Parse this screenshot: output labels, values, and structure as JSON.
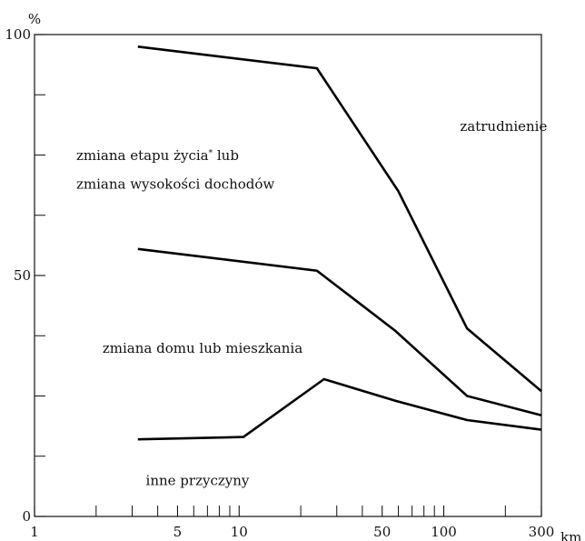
{
  "chart_data": {
    "type": "line",
    "title": "",
    "xlabel": "km",
    "ylabel": "%",
    "x_scale": "log",
    "xlim": [
      1,
      300
    ],
    "ylim": [
      0,
      100
    ],
    "x_ticks_major": [
      1,
      5,
      10,
      50,
      100,
      300
    ],
    "x_ticks_minor": [
      2,
      3,
      4,
      6,
      7,
      8,
      9,
      20,
      30,
      40,
      60,
      70,
      80,
      90,
      200
    ],
    "y_ticks_labeled": [
      0,
      50,
      100
    ],
    "y_ticks_minor": [
      25,
      75
    ],
    "y_ticks_extra": [
      12.5,
      37.5,
      62.5,
      87.5
    ],
    "grid": false,
    "legend": "none",
    "line_color": "#000000",
    "series": [
      {
        "x": [
          3.2,
          24,
          60,
          130,
          300
        ],
        "y": [
          97.5,
          93,
          67.5,
          39,
          26
        ]
      },
      {
        "x": [
          3.2,
          24,
          58,
          130,
          300
        ],
        "y": [
          55.5,
          51,
          38.5,
          25,
          21
        ]
      },
      {
        "x": [
          3.2,
          10.5,
          26,
          58,
          130,
          300
        ],
        "y": [
          16,
          16.5,
          28.5,
          24,
          20,
          18
        ]
      }
    ],
    "annotations": [
      {
        "text": "zatrudnienie",
        "x": 120,
        "y": 80
      },
      {
        "text": "zmiana etapu życia* lub",
        "x": 1.6,
        "y": 74
      },
      {
        "text": "zmiana wysokości dochodów",
        "x": 1.6,
        "y": 68
      },
      {
        "text": "zmiana domu lub mieszkania",
        "x": 2.15,
        "y": 34
      },
      {
        "text": "inne przyczyny",
        "x": 3.5,
        "y": 6.5
      }
    ]
  }
}
